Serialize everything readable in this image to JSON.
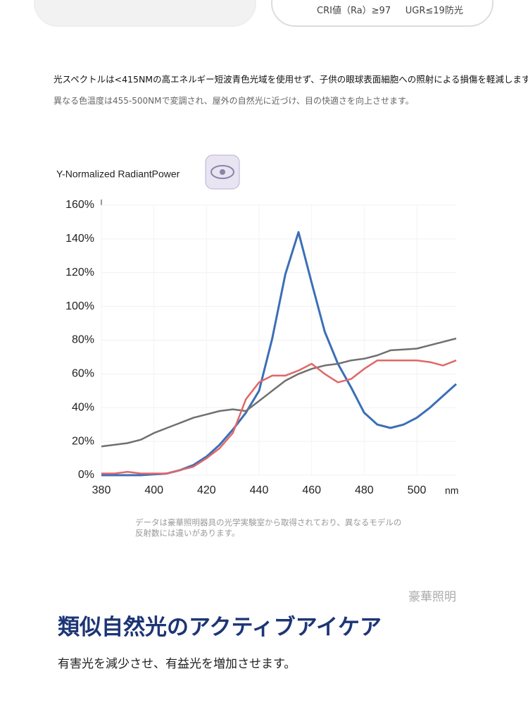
{
  "badge": {
    "cri": "CRI値（Ra）≥97",
    "ugr": "UGR≤19防光"
  },
  "intro": {
    "line1": "光スペクトルは<415NMの高エネルギー短波青色光域を使用せず、子供の眼球表面細胞への照射による損傷を軽減します。",
    "line2": "異なる色温度は455-500NMで変調され、屋外の自然光に近づけ、目の快適さを向上させます。"
  },
  "chart_data": {
    "type": "line",
    "y_label": "Y-Normalized RadiantPower",
    "x_unit": "nm",
    "x": [
      380,
      385,
      390,
      395,
      400,
      405,
      410,
      415,
      420,
      425,
      430,
      435,
      440,
      445,
      450,
      455,
      460,
      465,
      470,
      475,
      480,
      485,
      490,
      495,
      500,
      505,
      510,
      515
    ],
    "series": [
      {
        "name": "blue",
        "color": "#3b6fb6",
        "values": [
          0,
          0,
          0,
          0,
          0.5,
          1,
          3,
          6,
          11,
          18,
          27,
          37,
          50,
          81,
          119,
          144,
          114,
          85,
          66,
          52,
          37,
          30,
          28,
          30,
          34,
          40,
          47,
          54
        ]
      },
      {
        "name": "gray",
        "color": "#707070",
        "values": [
          17,
          18,
          19,
          21,
          25,
          28,
          31,
          34,
          36,
          38,
          39,
          38,
          44,
          50,
          56,
          60,
          63,
          65,
          66,
          68,
          69,
          71,
          74,
          74.5,
          75,
          77,
          79,
          81
        ]
      },
      {
        "name": "red",
        "color": "#e06868",
        "values": [
          1,
          1,
          2,
          1,
          1,
          1,
          3,
          5,
          10,
          16,
          25,
          45,
          55,
          59,
          59,
          62,
          66,
          60,
          55,
          57,
          63,
          68,
          68,
          68,
          68,
          67,
          65,
          68
        ]
      }
    ],
    "xlim": [
      380,
      515
    ],
    "xticks": [
      380,
      400,
      420,
      440,
      460,
      480,
      500
    ],
    "ylim": [
      0,
      160
    ],
    "yticks": [
      {
        "value": 0,
        "label": "0%"
      },
      {
        "value": 20,
        "label": "20%"
      },
      {
        "value": 40,
        "label": "40%"
      },
      {
        "value": 60,
        "label": "60%"
      },
      {
        "value": 80,
        "label": "80%"
      },
      {
        "value": 100,
        "label": "100%"
      },
      {
        "value": 120,
        "label": "120%"
      },
      {
        "value": 140,
        "label": "140%"
      },
      {
        "value": 160,
        "label": "160%"
      }
    ]
  },
  "note": "データは豪華照明器具の光学実験室から取得されており、異なるモデルの反射数には違いがあります。",
  "brand": "豪華照明",
  "heading": "類似自然光のアクティブアイケア",
  "subheading": "有害光を減少させ、有益光を増加させます。"
}
